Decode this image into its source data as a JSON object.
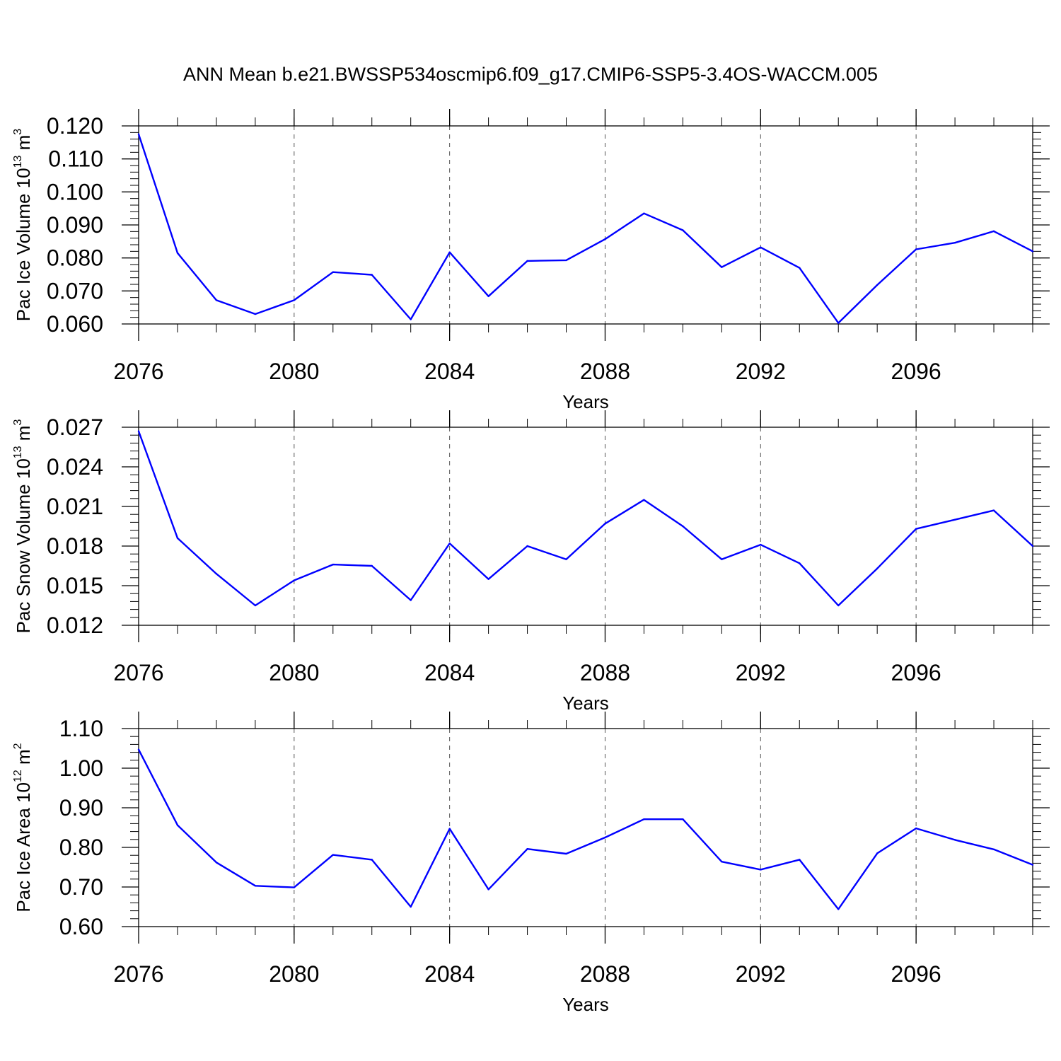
{
  "title": "ANN Mean b.e21.BWSSP534oscmip6.f09_g17.CMIP6-SSP5-3.4OS-WACCM.005",
  "chart_data": [
    {
      "type": "line",
      "ylabel": {
        "main": "Pac Ice Volume 10",
        "exp": "13",
        "unit": " m",
        "unit_exp": "3"
      },
      "xlabel": "Years",
      "x": [
        2076,
        2077,
        2078,
        2079,
        2080,
        2081,
        2082,
        2083,
        2084,
        2085,
        2086,
        2087,
        2088,
        2089,
        2090,
        2091,
        2092,
        2093,
        2094,
        2095,
        2096,
        2097,
        2098,
        2099
      ],
      "values": [
        0.1175,
        0.0815,
        0.0672,
        0.063,
        0.0672,
        0.0757,
        0.0749,
        0.0614,
        0.0817,
        0.0684,
        0.0791,
        0.0793,
        0.0857,
        0.0935,
        0.0884,
        0.0772,
        0.0832,
        0.077,
        0.0603,
        0.0718,
        0.0826,
        0.0846,
        0.0881,
        0.082
      ],
      "xlim": [
        2076,
        2099
      ],
      "ylim": [
        0.06,
        0.12
      ],
      "yticks": [
        "0.060",
        "0.070",
        "0.080",
        "0.090",
        "0.100",
        "0.110",
        "0.120"
      ],
      "ytick_values": [
        0.06,
        0.07,
        0.08,
        0.09,
        0.1,
        0.11,
        0.12
      ],
      "yminor_step": 0.002,
      "xticks": [
        "2076",
        "2080",
        "2084",
        "2088",
        "2092",
        "2096"
      ],
      "xtick_values": [
        2076,
        2080,
        2084,
        2088,
        2092,
        2096
      ],
      "grid": "vertical dashed at labeled years",
      "line_color": "#0000ff"
    },
    {
      "type": "line",
      "ylabel": {
        "main": "Pac Snow Volume 10",
        "exp": "13",
        "unit": " m",
        "unit_exp": "3"
      },
      "xlabel": "Years",
      "x": [
        2076,
        2077,
        2078,
        2079,
        2080,
        2081,
        2082,
        2083,
        2084,
        2085,
        2086,
        2087,
        2088,
        2089,
        2090,
        2091,
        2092,
        2093,
        2094,
        2095,
        2096,
        2097,
        2098,
        2099
      ],
      "values": [
        0.0267,
        0.0186,
        0.0159,
        0.0135,
        0.0154,
        0.0166,
        0.0165,
        0.0139,
        0.0182,
        0.0155,
        0.018,
        0.017,
        0.0197,
        0.0215,
        0.0195,
        0.017,
        0.0181,
        0.0167,
        0.0135,
        0.0163,
        0.0193,
        0.02,
        0.0207,
        0.018
      ],
      "xlim": [
        2076,
        2099
      ],
      "ylim": [
        0.012,
        0.027
      ],
      "yticks": [
        "0.012",
        "0.015",
        "0.018",
        "0.021",
        "0.024",
        "0.027"
      ],
      "ytick_values": [
        0.012,
        0.015,
        0.018,
        0.021,
        0.024,
        0.027
      ],
      "yminor_step": 0.0006,
      "xticks": [
        "2076",
        "2080",
        "2084",
        "2088",
        "2092",
        "2096"
      ],
      "xtick_values": [
        2076,
        2080,
        2084,
        2088,
        2092,
        2096
      ],
      "grid": "vertical dashed at labeled years",
      "line_color": "#0000ff"
    },
    {
      "type": "line",
      "ylabel": {
        "main": "Pac Ice Area 10",
        "exp": "12",
        "unit": " m",
        "unit_exp": "2"
      },
      "xlabel": "Years",
      "x": [
        2076,
        2077,
        2078,
        2079,
        2080,
        2081,
        2082,
        2083,
        2084,
        2085,
        2086,
        2087,
        2088,
        2089,
        2090,
        2091,
        2092,
        2093,
        2094,
        2095,
        2096,
        2097,
        2098,
        2099
      ],
      "values": [
        1.047,
        0.856,
        0.762,
        0.703,
        0.699,
        0.781,
        0.769,
        0.65,
        0.847,
        0.694,
        0.796,
        0.784,
        0.825,
        0.871,
        0.871,
        0.764,
        0.744,
        0.769,
        0.644,
        0.785,
        0.848,
        0.819,
        0.795,
        0.756
      ],
      "xlim": [
        2076,
        2099
      ],
      "ylim": [
        0.6,
        1.1
      ],
      "yticks": [
        "0.60",
        "0.70",
        "0.80",
        "0.90",
        "1.00",
        "1.10"
      ],
      "ytick_values": [
        0.6,
        0.7,
        0.8,
        0.9,
        1.0,
        1.1
      ],
      "yminor_step": 0.02,
      "xticks": [
        "2076",
        "2080",
        "2084",
        "2088",
        "2092",
        "2096"
      ],
      "xtick_values": [
        2076,
        2080,
        2084,
        2088,
        2092,
        2096
      ],
      "grid": "vertical dashed at labeled years",
      "line_color": "#0000ff"
    }
  ]
}
